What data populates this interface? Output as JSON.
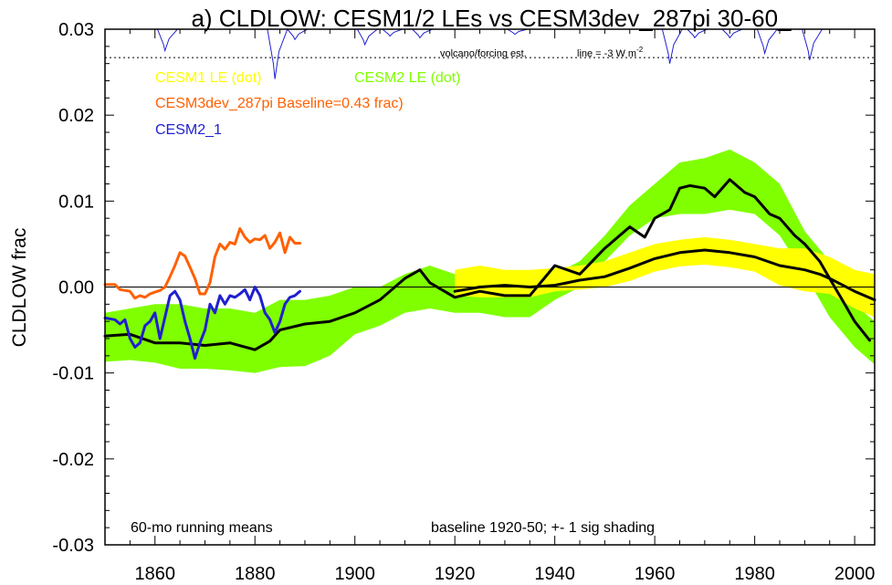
{
  "chart_data": {
    "type": "line",
    "title": "a) CLDLOW: CESM1/2 LEs vs CESM3dev_287pi 30-60_",
    "ylabel": "CLDLOW frac",
    "xlabel": "",
    "xlim": [
      1850,
      2004
    ],
    "ylim": [
      -0.03,
      0.03
    ],
    "x_ticks": [
      1860,
      1880,
      1900,
      1920,
      1940,
      1960,
      1980,
      2000
    ],
    "y_ticks": [
      {
        "value": 0.03,
        "label": "0.03"
      },
      {
        "value": 0.02,
        "label": "0.02"
      },
      {
        "value": 0.01,
        "label": "0.01"
      },
      {
        "value": 0.0,
        "label": "0.00"
      },
      {
        "value": -0.01,
        "label": "-0.01"
      },
      {
        "value": -0.02,
        "label": "-0.02"
      },
      {
        "value": -0.03,
        "label": "-0.03"
      }
    ],
    "legend": [
      {
        "text": "CESM1 LE (dot)",
        "color": "#ffff00"
      },
      {
        "text": "CESM2 LE (dot)",
        "color": "#80ff00"
      },
      {
        "text": "CESM3dev_287pi Baseline=0.43 frac)",
        "color": "#ff6000"
      },
      {
        "text": "CESM2_1",
        "color": "#2020d0"
      }
    ],
    "annotations": {
      "volcano": "volcano/forcing est.",
      "line_prefix": "line = -3 W m",
      "line_exp": "-2",
      "running": "60-mo running means",
      "baseline": "baseline 1920-50; +- 1 sig shading"
    },
    "reference_line_y": 0.0267,
    "bands": [
      {
        "name": "CESM2 LE",
        "color": "#80ff00",
        "x": [
          1850,
          1855,
          1860,
          1865,
          1870,
          1875,
          1880,
          1885,
          1890,
          1895,
          1900,
          1905,
          1910,
          1915,
          1920,
          1925,
          1930,
          1935,
          1940,
          1945,
          1950,
          1955,
          1960,
          1965,
          1970,
          1975,
          1980,
          1985,
          1990,
          1995,
          2000,
          2004
        ],
        "upper": [
          -0.003,
          -0.0025,
          -0.002,
          -0.002,
          -0.0025,
          -0.0025,
          -0.003,
          -0.0015,
          -0.0015,
          -0.001,
          0.0,
          0.0,
          0.0015,
          0.0025,
          0.0015,
          0.002,
          0.0005,
          0.001,
          0.0015,
          0.003,
          0.006,
          0.0095,
          0.012,
          0.0145,
          0.015,
          0.016,
          0.0145,
          0.012,
          0.0065,
          0.003,
          -0.002,
          -0.004
        ],
        "lower": [
          -0.0087,
          -0.0085,
          -0.0088,
          -0.0095,
          -0.0095,
          -0.0097,
          -0.01,
          -0.0093,
          -0.0092,
          -0.008,
          -0.0055,
          -0.0045,
          -0.003,
          -0.0025,
          -0.003,
          -0.003,
          -0.0035,
          -0.0035,
          -0.0015,
          0.0,
          0.003,
          0.006,
          0.008,
          0.0085,
          0.0085,
          0.009,
          0.0085,
          0.006,
          0.0015,
          -0.0035,
          -0.007,
          -0.009
        ]
      },
      {
        "name": "CESM1 LE",
        "color": "#ffff00",
        "x": [
          1920,
          1925,
          1930,
          1935,
          1940,
          1945,
          1950,
          1955,
          1960,
          1965,
          1970,
          1975,
          1980,
          1985,
          1990,
          1995,
          2000,
          2004
        ],
        "upper": [
          0.002,
          0.0025,
          0.002,
          0.002,
          0.0022,
          0.0025,
          0.003,
          0.004,
          0.005,
          0.0055,
          0.0058,
          0.0055,
          0.005,
          0.0045,
          0.0045,
          0.0035,
          0.002,
          0.0015
        ],
        "lower": [
          -0.001,
          -0.0012,
          -0.0012,
          -0.0012,
          -0.0005,
          -0.0003,
          0.0,
          0.0007,
          0.0018,
          0.0024,
          0.0026,
          0.0023,
          0.0018,
          0.0002,
          -0.0005,
          -0.0008,
          -0.0025,
          -0.0035
        ]
      }
    ],
    "series": [
      {
        "name": "CESM2 LE",
        "color": "#000000",
        "x": [
          1850,
          1855,
          1860,
          1865,
          1870,
          1875,
          1880,
          1883,
          1885,
          1890,
          1895,
          1900,
          1905,
          1910,
          1913,
          1915,
          1920,
          1925,
          1930,
          1935,
          1940,
          1945,
          1950,
          1953,
          1955,
          1958,
          1960,
          1963,
          1965,
          1967,
          1970,
          1972,
          1975,
          1978,
          1980,
          1983,
          1985,
          1988,
          1990,
          1993,
          1995,
          1998,
          2000,
          2003
        ],
        "y": [
          -0.0057,
          -0.0055,
          -0.0065,
          -0.0065,
          -0.0068,
          -0.0065,
          -0.0073,
          -0.0063,
          -0.005,
          -0.0043,
          -0.004,
          -0.003,
          -0.0015,
          0.001,
          0.002,
          0.0005,
          -0.0012,
          -0.0005,
          -0.001,
          -0.001,
          0.0025,
          0.0015,
          0.0045,
          0.006,
          0.007,
          0.0058,
          0.008,
          0.009,
          0.0115,
          0.0118,
          0.0115,
          0.0105,
          0.0125,
          0.011,
          0.0105,
          0.0085,
          0.008,
          0.006,
          0.005,
          0.003,
          0.001,
          -0.002,
          -0.004,
          -0.0062
        ]
      },
      {
        "name": "CESM1 LE",
        "color": "#000000",
        "x": [
          1920,
          1925,
          1930,
          1935,
          1940,
          1945,
          1950,
          1955,
          1960,
          1965,
          1970,
          1975,
          1980,
          1985,
          1990,
          1993,
          1995,
          2000,
          2004
        ],
        "y": [
          -0.0005,
          0.0,
          0.0002,
          0.0,
          0.0002,
          0.0008,
          0.0012,
          0.0022,
          0.0033,
          0.004,
          0.0043,
          0.004,
          0.0035,
          0.0025,
          0.002,
          0.0015,
          0.001,
          -0.0005,
          -0.0015
        ]
      },
      {
        "name": "CESM3dev_287pi",
        "color": "#ff6000",
        "x": [
          1850,
          1852,
          1853,
          1855,
          1856,
          1857,
          1858,
          1859,
          1860,
          1861,
          1862,
          1863,
          1864,
          1865,
          1866,
          1867,
          1868,
          1869,
          1870,
          1871,
          1872,
          1873,
          1874,
          1875,
          1876,
          1877,
          1878,
          1879,
          1880,
          1881,
          1882,
          1883,
          1884,
          1885,
          1886,
          1887,
          1888,
          1889
        ],
        "y": [
          0.0003,
          0.0003,
          -0.0003,
          -0.0005,
          -0.0013,
          -0.001,
          -0.0012,
          -0.0008,
          -0.0006,
          -0.0004,
          0.0,
          0.0012,
          0.0025,
          0.004,
          0.0036,
          0.0023,
          0.001,
          -0.0008,
          -0.0008,
          0.0005,
          0.0035,
          0.005,
          0.0044,
          0.0052,
          0.005,
          0.0068,
          0.0058,
          0.0052,
          0.0056,
          0.0055,
          0.006,
          0.0045,
          0.0052,
          0.0063,
          0.004,
          0.0058,
          0.0051,
          0.0051
        ]
      },
      {
        "name": "CESM2_1",
        "color": "#2020d0",
        "x": [
          1850,
          1852,
          1853,
          1854,
          1855,
          1856,
          1857,
          1858,
          1859,
          1860,
          1861,
          1862,
          1863,
          1864,
          1865,
          1866,
          1867,
          1868,
          1869,
          1870,
          1871,
          1872,
          1873,
          1874,
          1875,
          1876,
          1877,
          1878,
          1879,
          1880,
          1881,
          1882,
          1883,
          1884,
          1885,
          1886,
          1887,
          1888,
          1889
        ],
        "y": [
          -0.0036,
          -0.0038,
          -0.0043,
          -0.0038,
          -0.006,
          -0.007,
          -0.0065,
          -0.0045,
          -0.004,
          -0.003,
          -0.006,
          -0.0035,
          -0.001,
          -0.0005,
          -0.0015,
          -0.004,
          -0.006,
          -0.0083,
          -0.0065,
          -0.005,
          -0.002,
          -0.003,
          -0.001,
          -0.002,
          -0.001,
          -0.0012,
          -0.0008,
          -0.0003,
          -0.0015,
          0.0,
          -0.001,
          -0.003,
          -0.0038,
          -0.0053,
          -0.004,
          -0.002,
          -0.0012,
          -0.001,
          -0.0005
        ]
      }
    ],
    "forcing": {
      "name": "volcano/forcing est.",
      "color": "#2020d0",
      "events": [
        {
          "year": 1862,
          "depth": 0.0025
        },
        {
          "year": 1884,
          "depth": 0.0058
        },
        {
          "year": 1888,
          "depth": 0.0012
        },
        {
          "year": 1902,
          "depth": 0.0018
        },
        {
          "year": 1907,
          "depth": 0.0008
        },
        {
          "year": 1913,
          "depth": 0.001
        },
        {
          "year": 1932,
          "depth": 0.0006
        },
        {
          "year": 1963,
          "depth": 0.004
        },
        {
          "year": 1968,
          "depth": 0.001
        },
        {
          "year": 1975,
          "depth": 0.001
        },
        {
          "year": 1982,
          "depth": 0.0028
        },
        {
          "year": 1991,
          "depth": 0.0036
        }
      ]
    }
  }
}
